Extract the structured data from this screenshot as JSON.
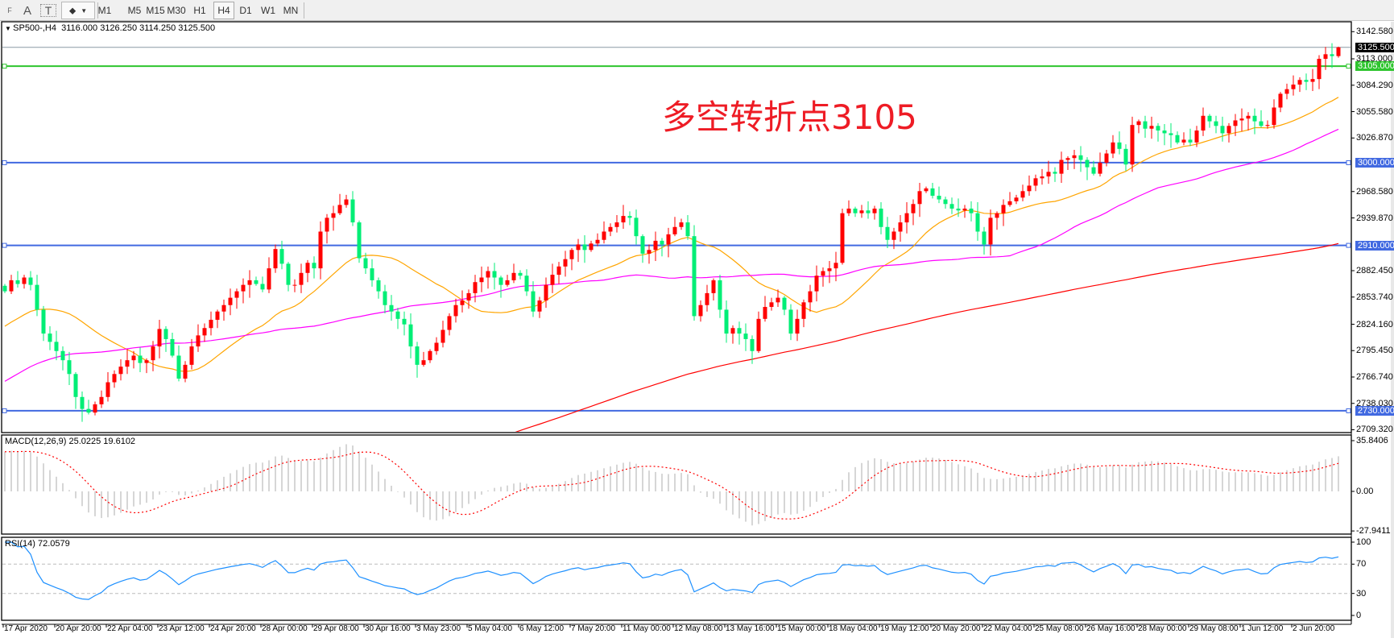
{
  "toolbar": {
    "tools": [
      {
        "name": "fibonacci-tool-icon",
        "glyph": "F"
      },
      {
        "name": "text-tool-icon",
        "glyph": "A"
      },
      {
        "name": "text-label-tool-icon",
        "glyph": "T"
      },
      {
        "name": "arrows-tool-icon",
        "glyph": "⬥"
      }
    ],
    "timeframes": [
      "M1",
      "M5",
      "M15",
      "M30",
      "H1",
      "H4",
      "D1",
      "W1",
      "MN"
    ],
    "selected": "H4"
  },
  "chart": {
    "symbol_label": "SP500-,H4",
    "ohlc": "3116.000 3126.250 3114.250 3125.500",
    "annotation": "多空转折点3105",
    "annotation_color": "#ee1c25"
  },
  "price_axis": {
    "labels": [
      "3142.580",
      "3113.000",
      "3084.290",
      "3055.580",
      "3026.870",
      "2968.580",
      "2939.870",
      "2882.450",
      "2853.740",
      "2824.160",
      "2795.450",
      "2766.740",
      "2738.030",
      "2709.320"
    ]
  },
  "current_price": {
    "price": 3125.5,
    "label": "3125.500",
    "color": "#8c9aa6"
  },
  "levels": [
    {
      "price": 3105,
      "label": "3105.000",
      "color": "#2ec52e"
    },
    {
      "price": 3000,
      "label": "3000.000",
      "color": "#4169e1"
    },
    {
      "price": 2910,
      "label": "2910.000",
      "color": "#4169e1"
    },
    {
      "price": 2730,
      "label": "2730.000",
      "color": "#4169e1"
    }
  ],
  "macd": {
    "label": "MACD(12,26,9) 25.0225 19.6102",
    "axis": [
      "35.8406",
      "0.00",
      "-27.9411"
    ],
    "hist_color": "#c0c0c0",
    "signal_color": "#ff0000"
  },
  "rsi": {
    "label": "RSI(14) 72.0579",
    "axis": [
      "100",
      "70",
      "30",
      "0"
    ],
    "levels": [
      70,
      30
    ],
    "color": "#1e90ff"
  },
  "time_axis": [
    "17 Apr 2020",
    "20 Apr 20:00",
    "22 Apr 04:00",
    "23 Apr 12:00",
    "24 Apr 20:00",
    "28 Apr 00:00",
    "29 Apr 08:00",
    "30 Apr 16:00",
    "3 May 23:00",
    "5 May 04:00",
    "6 May 12:00",
    "7 May 20:00",
    "11 May 00:00",
    "12 May 08:00",
    "13 May 16:00",
    "15 May 00:00",
    "18 May 04:00",
    "19 May 12:00",
    "20 May 20:00",
    "22 May 04:00",
    "25 May 08:00",
    "26 May 16:00",
    "28 May 00:00",
    "29 May 08:00",
    "1 Jun 12:00",
    "2 Jun 20:00"
  ],
  "chart_data": {
    "type": "candlestick",
    "symbol": "SP500-",
    "timeframe": "H4",
    "up_color": "#ff0000",
    "down_color": "#00ee76",
    "moving_averages": [
      {
        "color": "#ffa500"
      },
      {
        "color": "#ff00ff"
      },
      {
        "color": "#ff0000"
      }
    ],
    "last_bar": {
      "open": 3116.0,
      "high": 3126.25,
      "low": 3114.25,
      "close": 3125.5
    },
    "closes": [
      2860,
      2872,
      2868,
      2875,
      2867,
      2840,
      2814,
      2805,
      2795,
      2785,
      2770,
      2745,
      2732,
      2728,
      2737,
      2745,
      2761,
      2770,
      2778,
      2785,
      2790,
      2782,
      2785,
      2800,
      2819,
      2808,
      2790,
      2765,
      2780,
      2800,
      2812,
      2820,
      2829,
      2838,
      2845,
      2853,
      2860,
      2867,
      2872,
      2868,
      2862,
      2885,
      2906,
      2890,
      2867,
      2867,
      2880,
      2891,
      2885,
      2925,
      2940,
      2945,
      2954,
      2960,
      2935,
      2896,
      2885,
      2872,
      2860,
      2845,
      2838,
      2830,
      2824,
      2800,
      2780,
      2785,
      2795,
      2804,
      2818,
      2833,
      2845,
      2850,
      2858,
      2870,
      2875,
      2882,
      2875,
      2867,
      2872,
      2880,
      2877,
      2860,
      2838,
      2850,
      2867,
      2878,
      2887,
      2895,
      2905,
      2911,
      2905,
      2912,
      2916,
      2925,
      2930,
      2935,
      2942,
      2940,
      2920,
      2901,
      2905,
      2915,
      2911,
      2922,
      2930,
      2935,
      2920,
      2833,
      2845,
      2858,
      2872,
      2840,
      2814,
      2820,
      2814,
      2808,
      2795,
      2830,
      2843,
      2848,
      2853,
      2840,
      2814,
      2830,
      2848,
      2860,
      2877,
      2882,
      2885,
      2891,
      2945,
      2950,
      2945,
      2948,
      2945,
      2950,
      2930,
      2916,
      2925,
      2935,
      2945,
      2955,
      2969,
      2972,
      2964,
      2960,
      2955,
      2950,
      2948,
      2950,
      2945,
      2925,
      2911,
      2940,
      2945,
      2954,
      2958,
      2962,
      2969,
      2975,
      2983,
      2985,
      2990,
      2988,
      3003,
      3005,
      3008,
      3003,
      2995,
      2988,
      3000,
      3010,
      3022,
      3015,
      2998,
      3041,
      3045,
      3037,
      3040,
      3035,
      3032,
      3030,
      3022,
      3025,
      3022,
      3035,
      3051,
      3045,
      3040,
      3032,
      3040,
      3046,
      3048,
      3051,
      3045,
      3040,
      3041,
      3060,
      3075,
      3080,
      3085,
      3090,
      3088,
      3091,
      3113,
      3118,
      3116,
      3125.5
    ]
  }
}
